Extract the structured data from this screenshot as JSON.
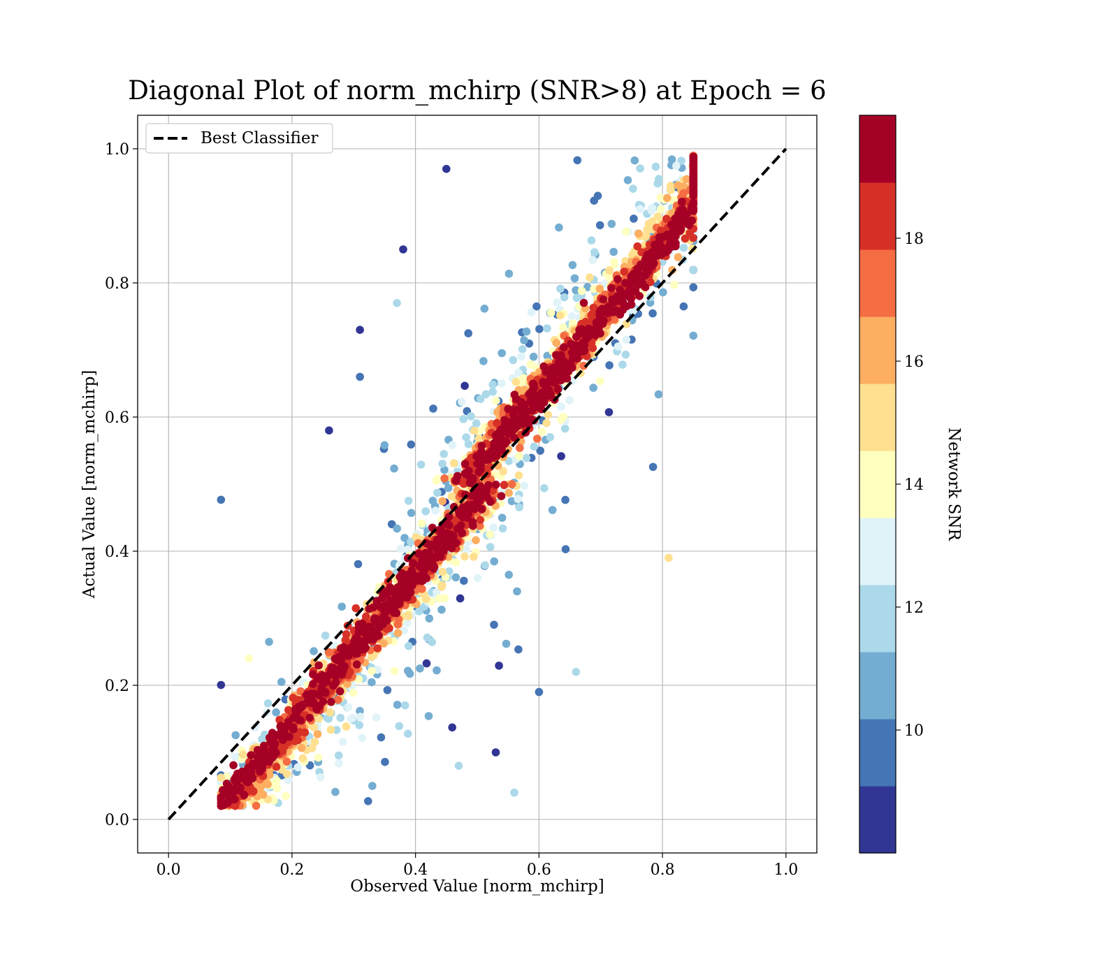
{
  "chart_data": {
    "type": "scatter",
    "title": "Diagonal Plot of norm_mchirp (SNR>8) at Epoch = 6",
    "xlabel": "Observed Value [norm_mchirp]",
    "ylabel": "Actual Value [norm_mchirp]",
    "xlim": [
      -0.05,
      1.05
    ],
    "ylim": [
      -0.05,
      1.05
    ],
    "x_ticks": [
      0.0,
      0.2,
      0.4,
      0.6,
      0.8,
      1.0
    ],
    "y_ticks": [
      0.0,
      0.2,
      0.4,
      0.6,
      0.8,
      1.0
    ],
    "x_tick_labels": [
      "0.0",
      "0.2",
      "0.4",
      "0.6",
      "0.8",
      "1.0"
    ],
    "y_tick_labels": [
      "0.0",
      "0.2",
      "0.4",
      "0.6",
      "0.8",
      "1.0"
    ],
    "grid": true,
    "legend": {
      "placement": "upper-left",
      "entries": [
        {
          "label": "Best Classifier",
          "style": "dashed",
          "color": "#000000"
        }
      ]
    },
    "reference_line": {
      "x": [
        0.0,
        1.0
      ],
      "y": [
        0.0,
        1.0
      ]
    },
    "colorbar": {
      "label": "Network SNR",
      "range": [
        8,
        20
      ],
      "ticks": [
        10,
        12,
        14,
        16,
        18
      ],
      "tick_labels": [
        "10",
        "12",
        "14",
        "16",
        "18"
      ],
      "colors": [
        "#313695",
        "#4575b4",
        "#74add1",
        "#abd9e9",
        "#e0f3f8",
        "#ffffbf",
        "#fee090",
        "#fdae61",
        "#f46d43",
        "#d73027",
        "#a50026"
      ]
    },
    "point_cloud": {
      "description_values": "Dense band of points around the diagonal; Observed Value spans about 0.08 to 0.85, Actual Value spans 0.0 to 1.0; high-SNR points hug the diagonal, low-SNR points spread outward",
      "x_range": [
        0.08,
        0.85
      ],
      "y_range": [
        0.0,
        1.0
      ],
      "outliers": [
        {
          "x": 0.31,
          "y": 0.73,
          "snr": 8.5
        },
        {
          "x": 0.26,
          "y": 0.58,
          "snr": 8.5
        },
        {
          "x": 0.38,
          "y": 0.85,
          "snr": 8.5
        },
        {
          "x": 0.45,
          "y": 0.97,
          "snr": 8.5
        },
        {
          "x": 0.31,
          "y": 0.66,
          "snr": 9.5
        },
        {
          "x": 0.37,
          "y": 0.77,
          "snr": 11.5
        },
        {
          "x": 0.6,
          "y": 0.19,
          "snr": 9.5
        },
        {
          "x": 0.66,
          "y": 0.22,
          "snr": 11.5
        },
        {
          "x": 0.56,
          "y": 0.04,
          "snr": 11.5
        },
        {
          "x": 0.53,
          "y": 0.1,
          "snr": 8.5
        },
        {
          "x": 0.47,
          "y": 0.08,
          "snr": 11.5
        },
        {
          "x": 0.33,
          "y": 0.05,
          "snr": 10.5
        },
        {
          "x": 0.13,
          "y": 0.24,
          "snr": 14.5
        },
        {
          "x": 0.81,
          "y": 0.39,
          "snr": 15.5
        },
        {
          "x": 0.85,
          "y": 0.95,
          "snr": 19.5
        },
        {
          "x": 0.83,
          "y": 0.88,
          "snr": 19.5
        }
      ]
    }
  }
}
